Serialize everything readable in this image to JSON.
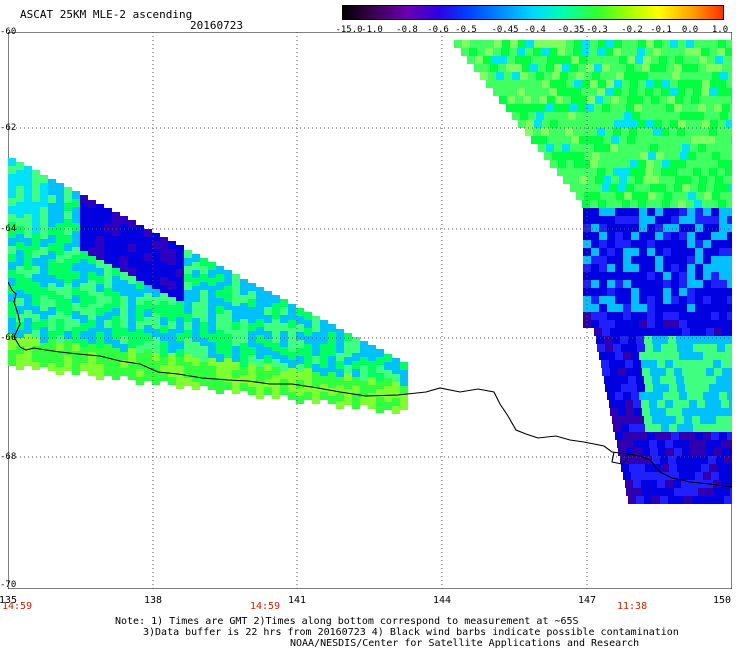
{
  "header": {
    "title": "ASCAT 25KM MLE-2 ascending",
    "date": "20160723"
  },
  "colorbar": {
    "labels": [
      "-15.0",
      "-1.0",
      "-0.8",
      "-0.6",
      "-0.5",
      "-0.45",
      "-0.4",
      "-0.35",
      "-0.3",
      "-0.2",
      "-0.1",
      "0.0",
      "1.0"
    ],
    "colors": [
      "#000000",
      "#3a0050",
      "#6a00b0",
      "#3000e0",
      "#0040ff",
      "#0090ff",
      "#00d8ff",
      "#00ffb0",
      "#30ff30",
      "#a0ff00",
      "#ffff00",
      "#ffa000",
      "#ff3000"
    ]
  },
  "axes": {
    "lat_labels": [
      "-60",
      "-62",
      "-64",
      "-66",
      "-68",
      "-70"
    ],
    "lon_labels": [
      "135",
      "138",
      "141",
      "144",
      "147",
      "150"
    ],
    "time_labels": [
      "14:59",
      "14:59",
      "11:38"
    ]
  },
  "swaths": [
    {
      "name": "west-swath",
      "colors": [
        "#00e0ff",
        "#40ff80",
        "#00ff60",
        "#0000e0",
        "#3000c0",
        "#00c0ff",
        "#30ff40",
        "#80ff30"
      ]
    },
    {
      "name": "east-swath",
      "colors": [
        "#40ff60",
        "#00ff40",
        "#80ff60",
        "#00e0ff",
        "#0000e0",
        "#3000b0",
        "#2020ff",
        "#00c0ff",
        "#40ff80"
      ]
    }
  ],
  "notes": [
    "Note: 1) Times are GMT 2)Times along bottom correspond to measurement at ~65S",
    "3)Data buffer is 22 hrs from 20160723 4) Black wind barbs indicate possible contamination",
    "NOAA/NESDIS/Center for Satellite Applications and Research"
  ]
}
